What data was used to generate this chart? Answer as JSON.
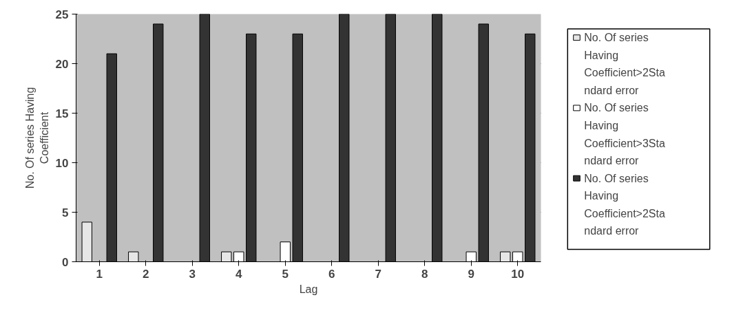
{
  "chart_data": {
    "type": "bar",
    "xlabel": "Lag",
    "ylabel": "No. Of series Having Coefficient",
    "categories": [
      "1",
      "2",
      "3",
      "4",
      "5",
      "6",
      "7",
      "8",
      "9",
      "10"
    ],
    "series": [
      {
        "name": "No. Of series Having Coefficient>2Standard error",
        "color": "#e6e6e6",
        "values": [
          4,
          1,
          0,
          1,
          0,
          0,
          0,
          0,
          0,
          1
        ]
      },
      {
        "name": "No. Of series Having Coefficient>3Standard error",
        "color": "#ffffff",
        "values": [
          0,
          0,
          0,
          1,
          2,
          0,
          0,
          0,
          1,
          1
        ]
      },
      {
        "name": "No. Of series Having Coefficient>2Standard error",
        "color": "#333333",
        "values": [
          21,
          24,
          25,
          23,
          23,
          25,
          25,
          25,
          24,
          23
        ]
      }
    ],
    "ylim": [
      0,
      25
    ],
    "yticks": [
      0,
      5,
      10,
      15,
      20,
      25
    ],
    "grid": "y",
    "legend": "right"
  }
}
